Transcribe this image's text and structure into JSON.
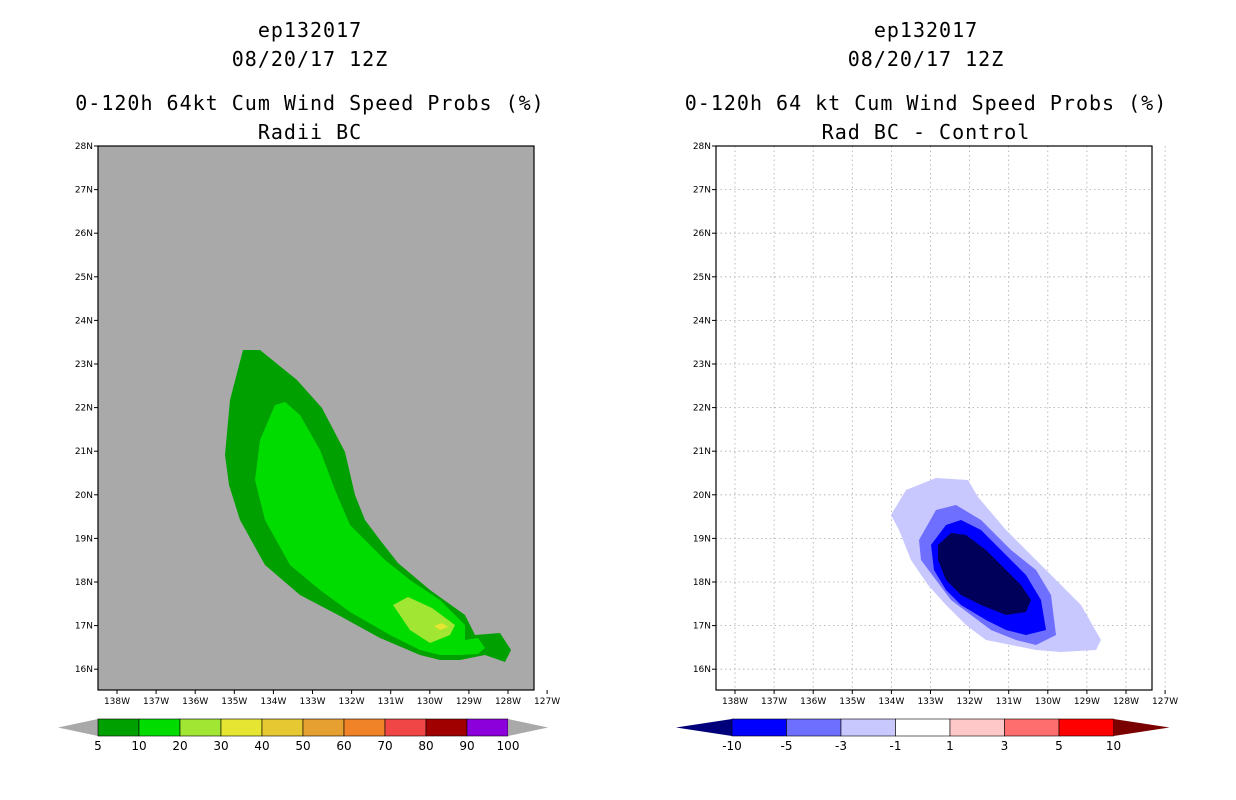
{
  "chart_data": [
    {
      "type": "map",
      "title_lines": [
        "ep132017",
        "08/20/17 12Z",
        "0-120h 64kt Cum Wind Speed Probs (%)",
        "Radii BC"
      ],
      "lat_ticks": [
        "28N",
        "27N",
        "26N",
        "25N",
        "24N",
        "23N",
        "22N",
        "21N",
        "20N",
        "19N",
        "18N",
        "17N",
        "16N"
      ],
      "lon_ticks": [
        "138W",
        "137W",
        "136W",
        "135W",
        "134W",
        "133W",
        "132W",
        "131W",
        "130W",
        "129W",
        "128W",
        "127W"
      ],
      "lat_range": [
        15.5,
        28.0
      ],
      "lon_range": [
        -138.5,
        -127.4
      ],
      "background": "#a9a9a9",
      "colorbar": {
        "labels": [
          "5",
          "10",
          "20",
          "30",
          "40",
          "50",
          "60",
          "70",
          "80",
          "90",
          "100"
        ],
        "colors": [
          "#00a000",
          "#00dc00",
          "#a0e632",
          "#e6e632",
          "#e6c832",
          "#e6a032",
          "#f08228",
          "#f04646",
          "#a00000",
          "#8c00dc"
        ],
        "arrow_color": "#a9a9a9"
      },
      "contours": [
        {
          "level": "5-10",
          "color": "#00a000"
        },
        {
          "level": "10-20",
          "color": "#00dc00"
        },
        {
          "level": "20-30",
          "color": "#a0e632"
        },
        {
          "level": "30-40",
          "color": "#e6e632"
        }
      ]
    },
    {
      "type": "map",
      "title_lines": [
        "ep132017",
        "08/20/17 12Z",
        "0-120h 64 kt Cum Wind Speed Probs (%)",
        "Rad BC - Control"
      ],
      "lat_ticks": [
        "28N",
        "27N",
        "26N",
        "25N",
        "24N",
        "23N",
        "22N",
        "21N",
        "20N",
        "19N",
        "18N",
        "17N",
        "16N"
      ],
      "lon_ticks": [
        "138W",
        "137W",
        "136W",
        "135W",
        "134W",
        "133W",
        "132W",
        "131W",
        "130W",
        "129W",
        "128W",
        "127W"
      ],
      "lat_range": [
        15.5,
        28.0
      ],
      "lon_range": [
        -138.5,
        -127.4
      ],
      "background": "#ffffff",
      "colorbar": {
        "labels": [
          "-10",
          "-5",
          "-3",
          "-1",
          "1",
          "3",
          "5",
          "10"
        ],
        "colors": [
          "#0000ff",
          "#6e6eff",
          "#c8c8ff",
          "#ffffff",
          "#ffc8c8",
          "#ff6e6e",
          "#ff0000"
        ],
        "left_arrow_color": "#00007a",
        "right_arrow_color": "#7a0000"
      },
      "contours": [
        {
          "level": "-3 to -1",
          "color": "#c8c8ff"
        },
        {
          "level": "-5 to -3",
          "color": "#6e6eff"
        },
        {
          "level": "-10 to -5",
          "color": "#0000ff"
        },
        {
          "level": "< -10",
          "color": "#00005a"
        }
      ]
    }
  ]
}
